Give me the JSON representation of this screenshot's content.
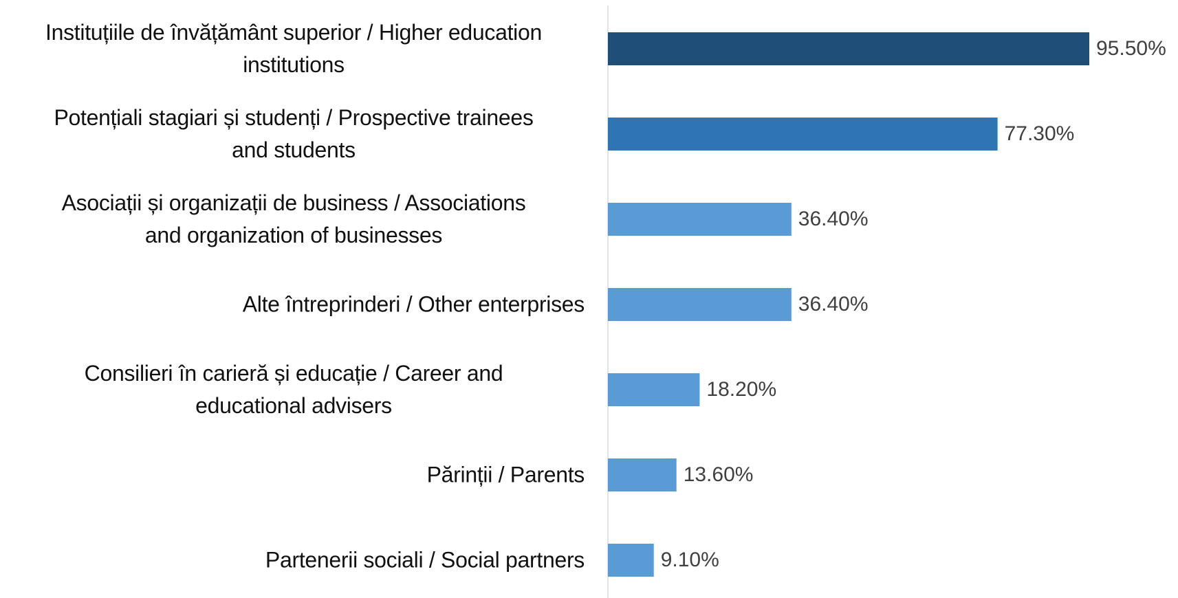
{
  "chart_data": {
    "type": "hbar",
    "categories": [
      "Instituțiile de învățământ superior / Higher education\ninstitutions",
      "Potențiali stagiari și studenți / Prospective trainees\nand students",
      "Asociații și organizații de business / Associations\nand organization of businesses",
      "Alte întreprinderi / Other enterprises",
      "Consilieri în carieră și educație  / Career and\neducational advisers",
      "Părinții / Parents",
      "Partenerii sociali  / Social partners"
    ],
    "values": [
      95.5,
      77.3,
      36.4,
      36.4,
      18.2,
      13.6,
      9.1
    ],
    "value_labels": [
      "95.50%",
      "77.30%",
      "36.40%",
      "36.40%",
      "18.20%",
      "13.60%",
      "9.10%"
    ],
    "colors": [
      "#1f4e79",
      "#2e75b6",
      "#5b9bd5",
      "#5b9bd5",
      "#5b9bd5",
      "#5b9bd5",
      "#5b9bd5"
    ]
  }
}
